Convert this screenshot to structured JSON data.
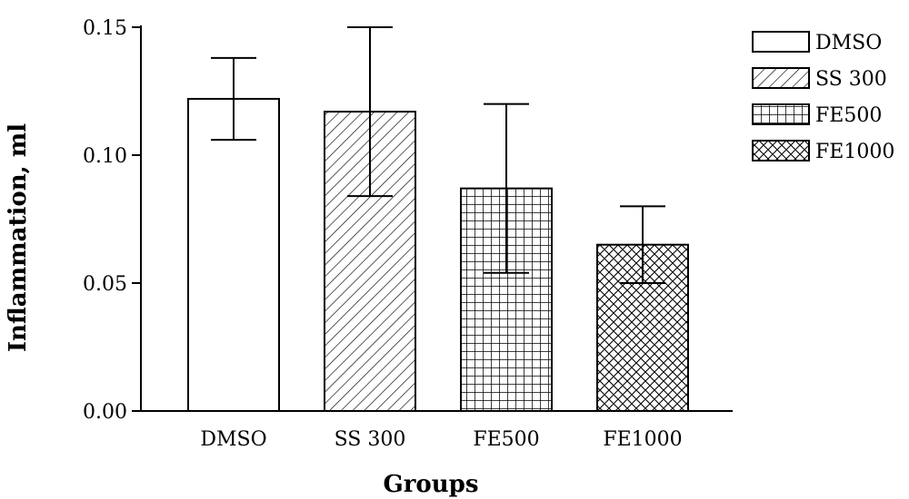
{
  "chart_data": {
    "type": "bar",
    "title": "",
    "xlabel": "Groups",
    "ylabel": "Inflammation, ml",
    "ylim": [
      0,
      0.15
    ],
    "yticks": [
      "0.00",
      "0.05",
      "0.10",
      "0.15"
    ],
    "categories": [
      "DMSO",
      "SS 300",
      "FE500",
      "FE1000"
    ],
    "values": [
      0.122,
      0.117,
      0.087,
      0.065
    ],
    "error_upper": [
      0.138,
      0.15,
      0.12,
      0.08
    ],
    "error_lower": [
      0.106,
      0.084,
      0.054,
      0.05
    ],
    "patterns": [
      "none",
      "diagonal-hatch",
      "grid",
      "crosshatch"
    ],
    "legend": {
      "position": "top-right",
      "entries": [
        "DMSO",
        "SS 300",
        "FE500",
        "FE1000"
      ]
    },
    "grid": false,
    "colors": {
      "bar_stroke": "#000000",
      "bar_fill": "#ffffff"
    }
  }
}
